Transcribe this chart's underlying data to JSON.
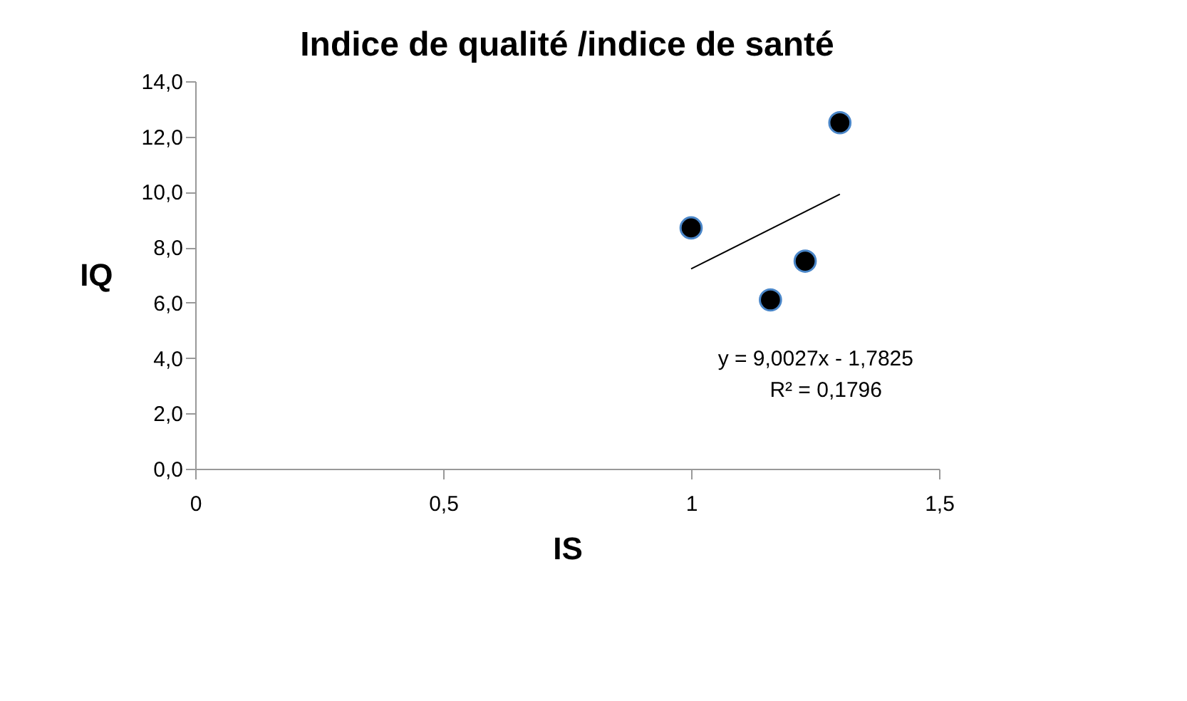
{
  "chart_data": {
    "type": "scatter",
    "title": "Indice de qualité /indice de santé",
    "xlabel": "IS",
    "ylabel": "IQ",
    "xlim": [
      0,
      1.5
    ],
    "xticks": [
      {
        "value": 0,
        "label": "0"
      },
      {
        "value": 0.5,
        "label": "0,5"
      },
      {
        "value": 1,
        "label": "1"
      },
      {
        "value": 1.5,
        "label": "1,5"
      }
    ],
    "ylim": [
      0,
      14
    ],
    "yticks": [
      {
        "value": 0,
        "label": "0,0"
      },
      {
        "value": 2,
        "label": "2,0"
      },
      {
        "value": 4,
        "label": "4,0"
      },
      {
        "value": 6,
        "label": "6,0"
      },
      {
        "value": 8,
        "label": "8,0"
      },
      {
        "value": 10,
        "label": "10,0"
      },
      {
        "value": 12,
        "label": "12,0"
      },
      {
        "value": 14,
        "label": "14,0"
      }
    ],
    "grid": false,
    "series": [
      {
        "color": "#000000",
        "x": [
          1.0,
          1.16,
          1.23,
          1.3
        ],
        "values": [
          8.7,
          6.1,
          7.5,
          12.5
        ]
      },
      {
        "type": "line",
        "color": "#000000",
        "x": [
          1.0,
          1.3
        ],
        "values": [
          7.22,
          9.92
        ]
      }
    ],
    "annotations": [
      "y = 9,0027x - 1,7825",
      "R² = 0,1796"
    ]
  }
}
